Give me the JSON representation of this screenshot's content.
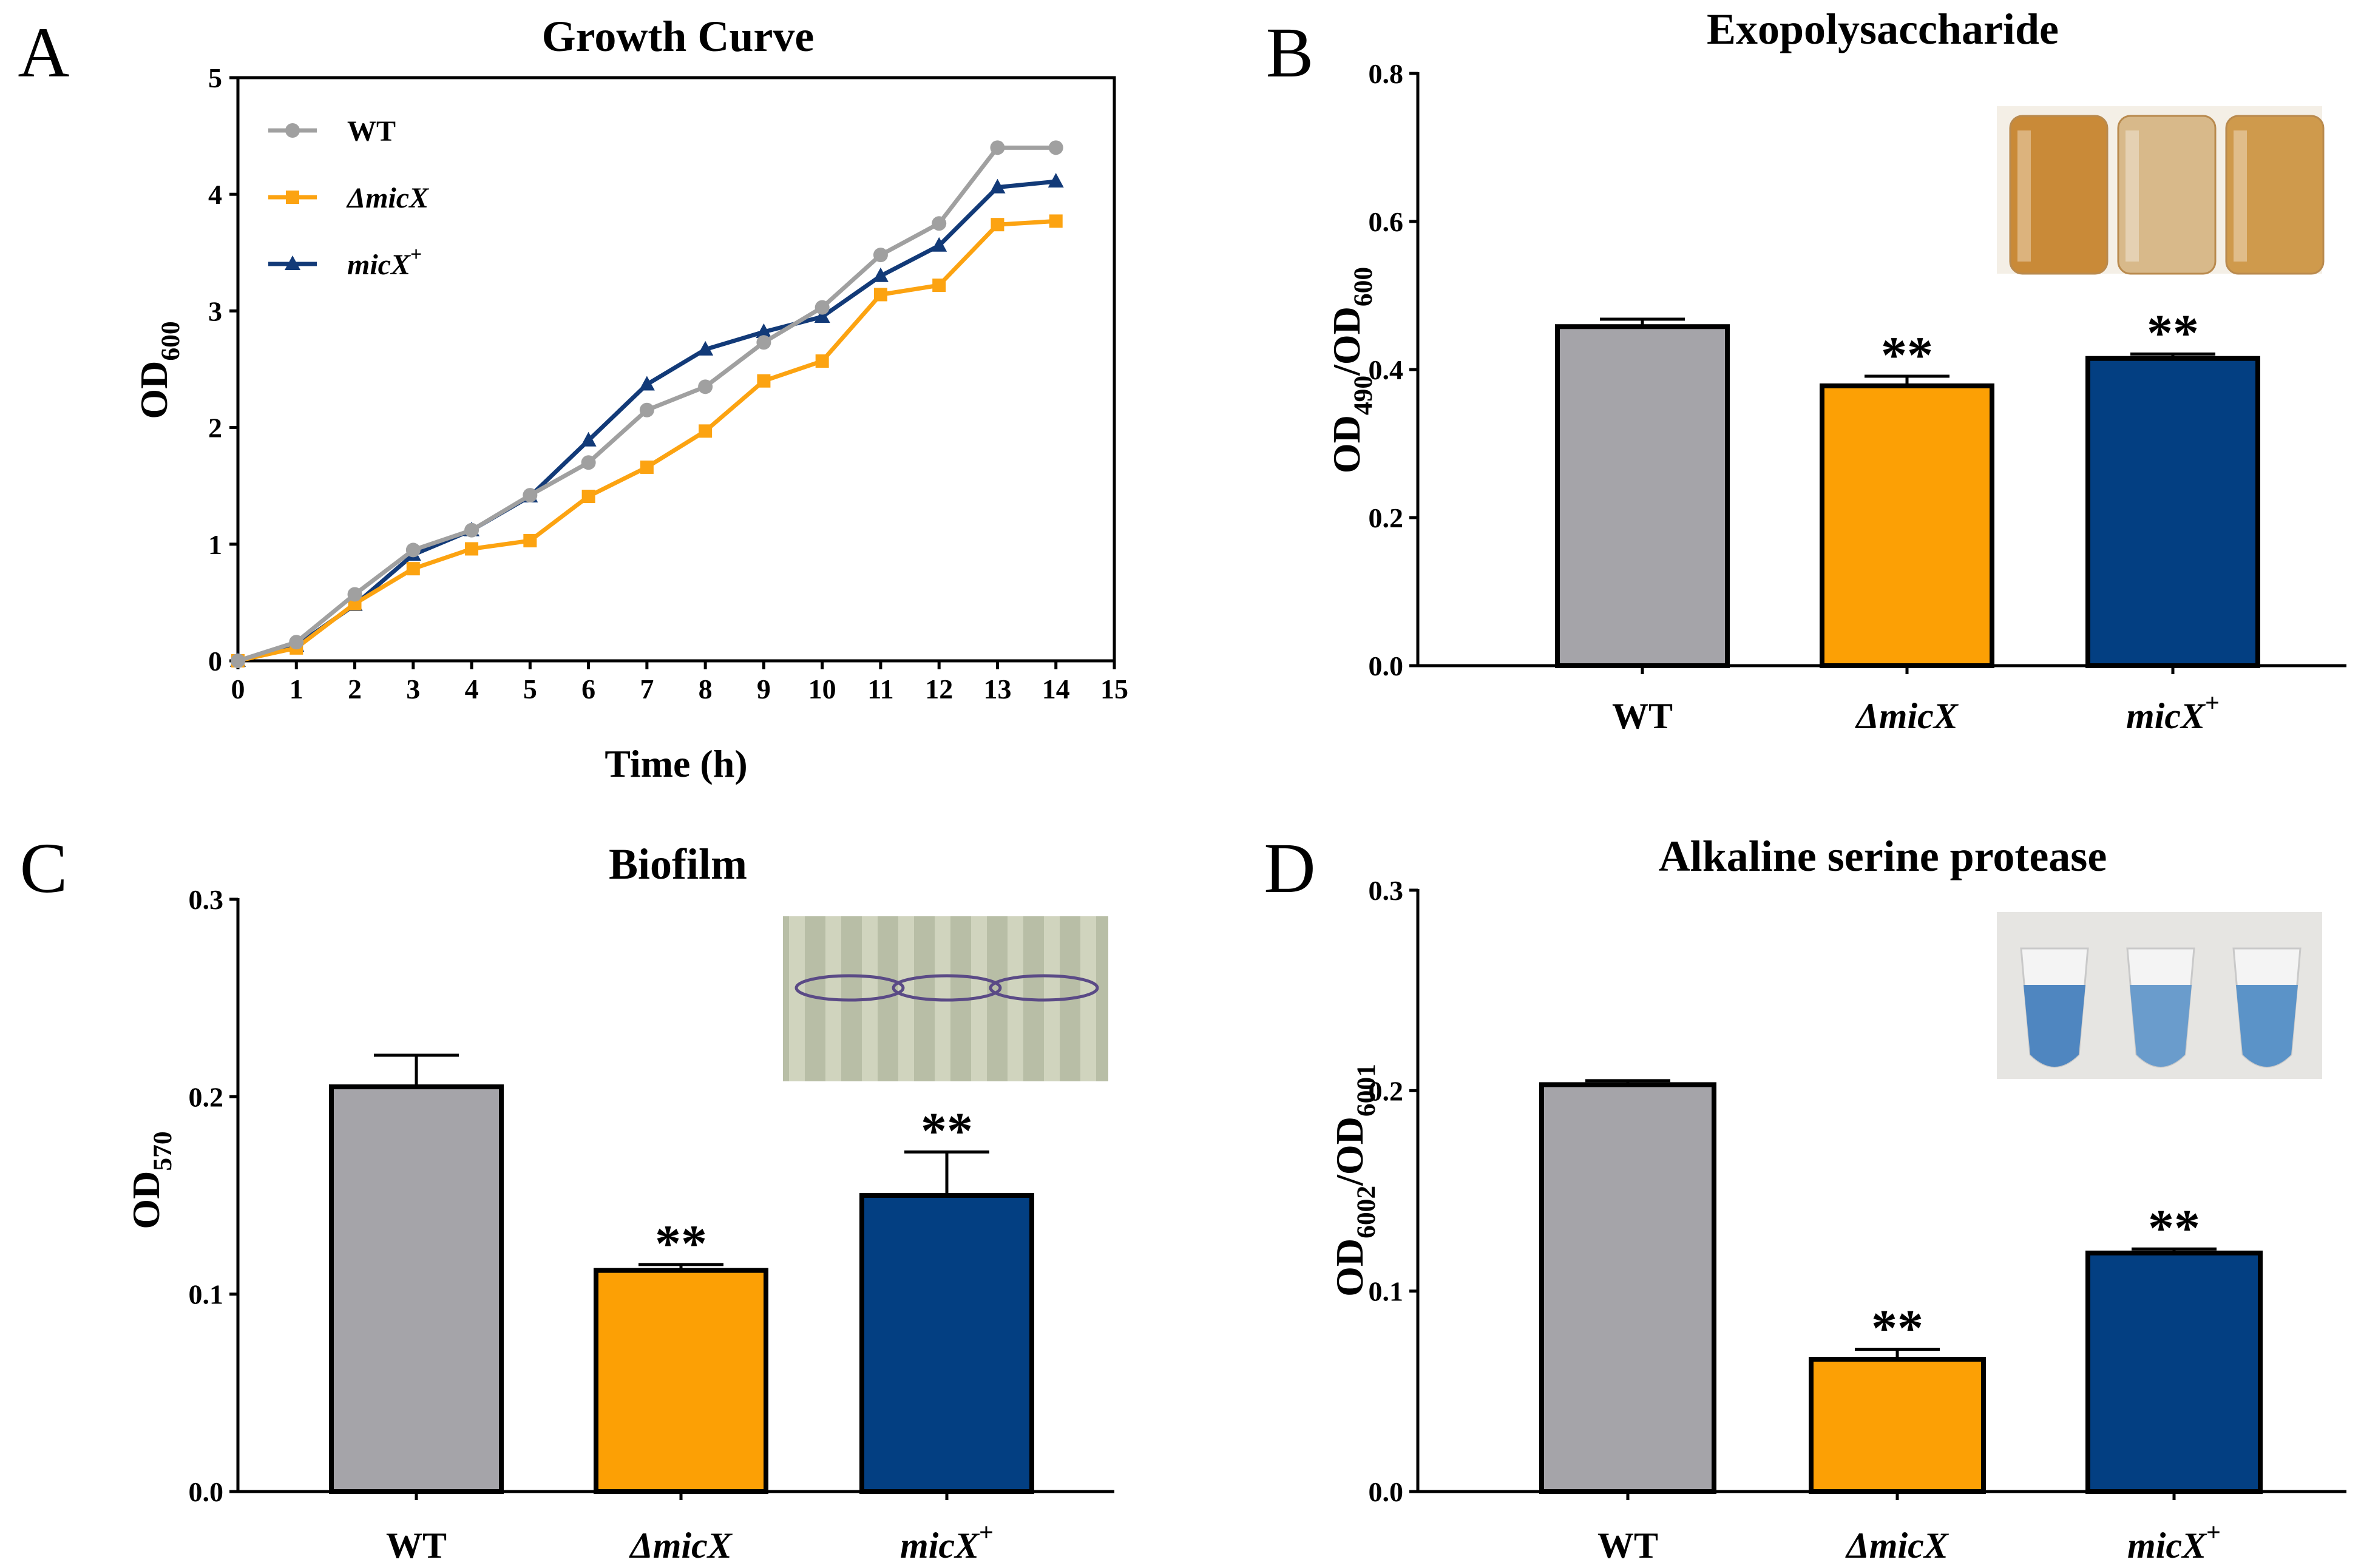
{
  "panels": {
    "A": {
      "label": "A",
      "title": "Growth Curve",
      "ylabel": "OD",
      "ylabel_sub": "600",
      "xlabel": "Time (h)"
    },
    "B": {
      "label": "B",
      "title": "Exopolysaccharide",
      "ylabel_a": "OD",
      "ylabel_a_sub": "490",
      "ylabel_b": "/OD",
      "ylabel_b_sub": "600",
      "inset": "photo of three culture tubes with tan/brown cultures"
    },
    "C": {
      "label": "C",
      "title": "Biofilm",
      "ylabel": "OD",
      "ylabel_sub": "570",
      "inset": "photo of three tubes with purple-stained biofilm rings"
    },
    "D": {
      "label": "D",
      "title": "Alkaline serine protease",
      "ylabel_a": "OD",
      "ylabel_a_sub": "6002",
      "ylabel_b": "/OD",
      "ylabel_b_sub": "6001",
      "inset": "photo of three microtubes with blue solutions"
    }
  },
  "strains": [
    {
      "name": "WT",
      "italic": false,
      "sup": ""
    },
    {
      "name": "ΔmicX",
      "italic": true,
      "sup": ""
    },
    {
      "name": "micX",
      "italic": true,
      "sup": "+"
    }
  ],
  "colors": {
    "WT_bar": "#a5a4a9",
    "mutant_bar": "#fca005",
    "comp_bar": "#033f82",
    "WT_line": "#a0a0a0",
    "mutant_line": "#fca311",
    "comp_line": "#123a78"
  },
  "chart_data": [
    {
      "panel": "A",
      "type": "line",
      "title": "Growth Curve",
      "xlabel": "Time (h)",
      "ylabel": "OD600",
      "xlim": [
        0,
        15
      ],
      "ylim": [
        0,
        5
      ],
      "xticks": [
        "0",
        "1",
        "2",
        "3",
        "4",
        "5",
        "6",
        "7",
        "8",
        "9",
        "10",
        "11",
        "12",
        "13",
        "14",
        "15"
      ],
      "yticks": [
        "0",
        "1",
        "2",
        "3",
        "4",
        "5"
      ],
      "x": [
        0,
        1,
        2,
        3,
        4,
        5,
        6,
        7,
        8,
        9,
        10,
        11,
        12,
        13,
        14
      ],
      "legend_position": "top-left",
      "series": [
        {
          "name": "WT",
          "marker": "circle",
          "values": [
            0,
            0.16,
            0.57,
            0.95,
            1.12,
            1.42,
            1.7,
            2.15,
            2.35,
            2.73,
            3.03,
            3.48,
            3.75,
            4.4,
            4.4
          ]
        },
        {
          "name": "ΔmicX",
          "marker": "square",
          "values": [
            0,
            0.11,
            0.49,
            0.79,
            0.96,
            1.03,
            1.41,
            1.66,
            1.97,
            2.4,
            2.57,
            3.14,
            3.22,
            3.74,
            3.77
          ]
        },
        {
          "name": "micX+",
          "marker": "triangle",
          "values": [
            0,
            0.13,
            0.48,
            0.91,
            1.12,
            1.41,
            1.89,
            2.37,
            2.67,
            2.82,
            2.95,
            3.3,
            3.56,
            4.06,
            4.11
          ]
        }
      ]
    },
    {
      "panel": "B",
      "type": "bar",
      "title": "Exopolysaccharide",
      "ylabel": "OD490/OD600",
      "ylim": [
        0,
        0.8
      ],
      "yticks": [
        "0.0",
        "0.2",
        "0.4",
        "0.6",
        "0.8"
      ],
      "categories": [
        "WT",
        "ΔmicX",
        "micX+"
      ],
      "values": [
        0.458,
        0.378,
        0.415
      ],
      "errors": [
        0.01,
        0.013,
        0.006
      ],
      "annotations": [
        "",
        "**",
        "**"
      ]
    },
    {
      "panel": "C",
      "type": "bar",
      "title": "Biofilm",
      "ylabel": "OD570",
      "ylim": [
        0,
        0.3
      ],
      "yticks": [
        "0.0",
        "0.1",
        "0.2",
        "0.3"
      ],
      "categories": [
        "WT",
        "ΔmicX",
        "micX+"
      ],
      "values": [
        0.205,
        0.112,
        0.15
      ],
      "errors": [
        0.016,
        0.003,
        0.022
      ],
      "annotations": [
        "",
        "**",
        "**"
      ]
    },
    {
      "panel": "D",
      "type": "bar",
      "title": "Alkaline serine protease",
      "ylabel": "OD6002/OD6001",
      "ylim": [
        0,
        0.3
      ],
      "yticks": [
        "0.0",
        "0.1",
        "0.2",
        "0.3"
      ],
      "categories": [
        "WT",
        "ΔmicX",
        "micX+"
      ],
      "values": [
        0.203,
        0.066,
        0.119
      ],
      "errors": [
        0.002,
        0.005,
        0.002
      ],
      "annotations": [
        "",
        "**",
        "**"
      ]
    }
  ]
}
